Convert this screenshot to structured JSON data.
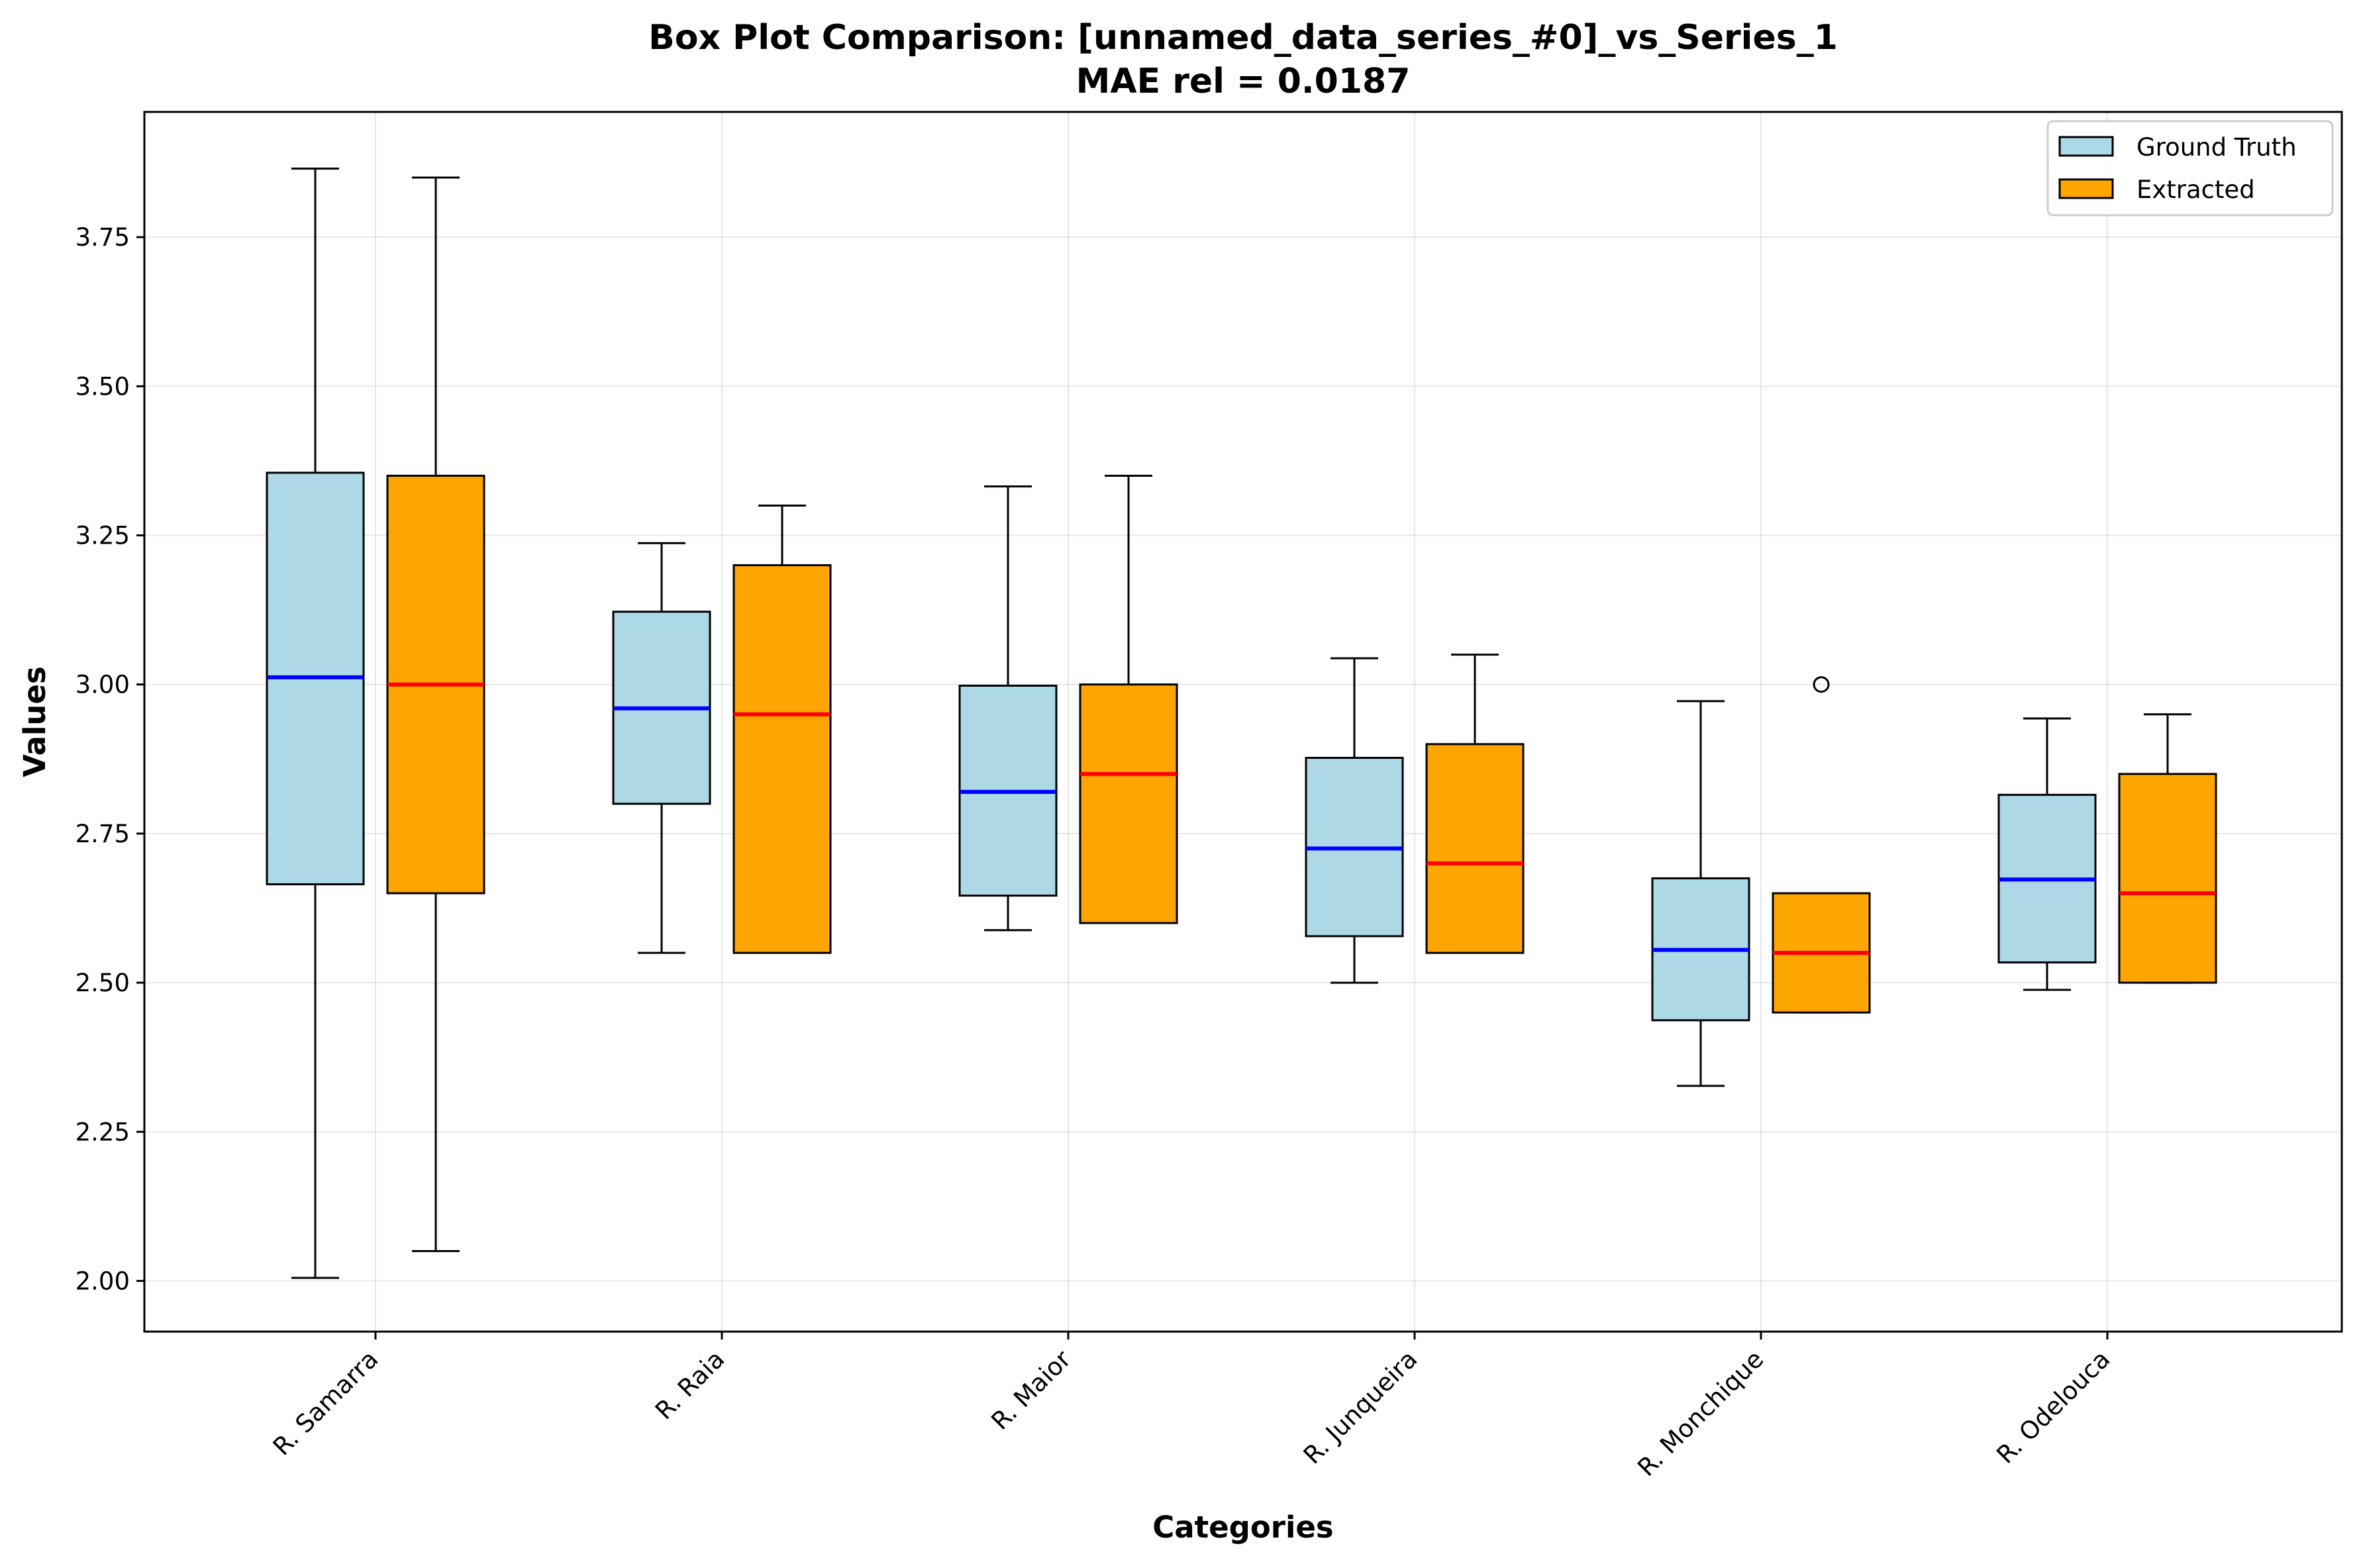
{
  "chart_data": {
    "type": "box",
    "title": "Box Plot Comparison: [unnamed_data_series_#0]_vs_Series_1",
    "subtitle": "MAE rel = 0.0187",
    "xlabel": "Categories",
    "ylabel": "Values",
    "ylim": [
      1.915,
      3.96
    ],
    "yticks": [
      2.0,
      2.25,
      2.5,
      2.75,
      3.0,
      3.25,
      3.5,
      3.75
    ],
    "ytick_labels": [
      "2.00",
      "2.25",
      "2.50",
      "2.75",
      "3.00",
      "3.25",
      "3.50",
      "3.75"
    ],
    "grid": true,
    "legend_position": "top-right",
    "categories": [
      "R. Samarra",
      "R. Raia",
      "R. Maior",
      "R. Junqueira",
      "R. Monchique",
      "R. Odelouca"
    ],
    "series": [
      {
        "name": "Ground Truth",
        "box_color": "#add8e6",
        "median_color": "#0000ff",
        "boxes": [
          {
            "whislo": 2.005,
            "q1": 2.665,
            "med": 3.012,
            "q3": 3.355,
            "whishi": 3.865,
            "fliers": []
          },
          {
            "whislo": 2.55,
            "q1": 2.8,
            "med": 2.96,
            "q3": 3.122,
            "whishi": 3.237,
            "fliers": []
          },
          {
            "whislo": 2.588,
            "q1": 2.646,
            "med": 2.82,
            "q3": 2.998,
            "whishi": 3.332,
            "fliers": []
          },
          {
            "whislo": 2.5,
            "q1": 2.578,
            "med": 2.725,
            "q3": 2.877,
            "whishi": 3.044,
            "fliers": []
          },
          {
            "whislo": 2.327,
            "q1": 2.437,
            "med": 2.555,
            "q3": 2.675,
            "whishi": 2.972,
            "fliers": []
          },
          {
            "whislo": 2.488,
            "q1": 2.534,
            "med": 2.673,
            "q3": 2.815,
            "whishi": 2.943,
            "fliers": []
          }
        ]
      },
      {
        "name": "Extracted",
        "box_color": "#ffa500",
        "median_color": "#ff0000",
        "boxes": [
          {
            "whislo": 2.05,
            "q1": 2.65,
            "med": 3.0,
            "q3": 3.35,
            "whishi": 3.85,
            "fliers": []
          },
          {
            "whislo": 2.55,
            "q1": 2.55,
            "med": 2.95,
            "q3": 3.2,
            "whishi": 3.3,
            "fliers": []
          },
          {
            "whislo": 2.6,
            "q1": 2.6,
            "med": 2.85,
            "q3": 3.0,
            "whishi": 3.35,
            "fliers": []
          },
          {
            "whislo": 2.55,
            "q1": 2.55,
            "med": 2.7,
            "q3": 2.9,
            "whishi": 3.05,
            "fliers": []
          },
          {
            "whislo": 2.45,
            "q1": 2.45,
            "med": 2.55,
            "q3": 2.65,
            "whishi": 2.65,
            "fliers": [
              3.0
            ]
          },
          {
            "whislo": 2.5,
            "q1": 2.5,
            "med": 2.65,
            "q3": 2.85,
            "whishi": 2.95,
            "fliers": []
          }
        ]
      }
    ]
  }
}
